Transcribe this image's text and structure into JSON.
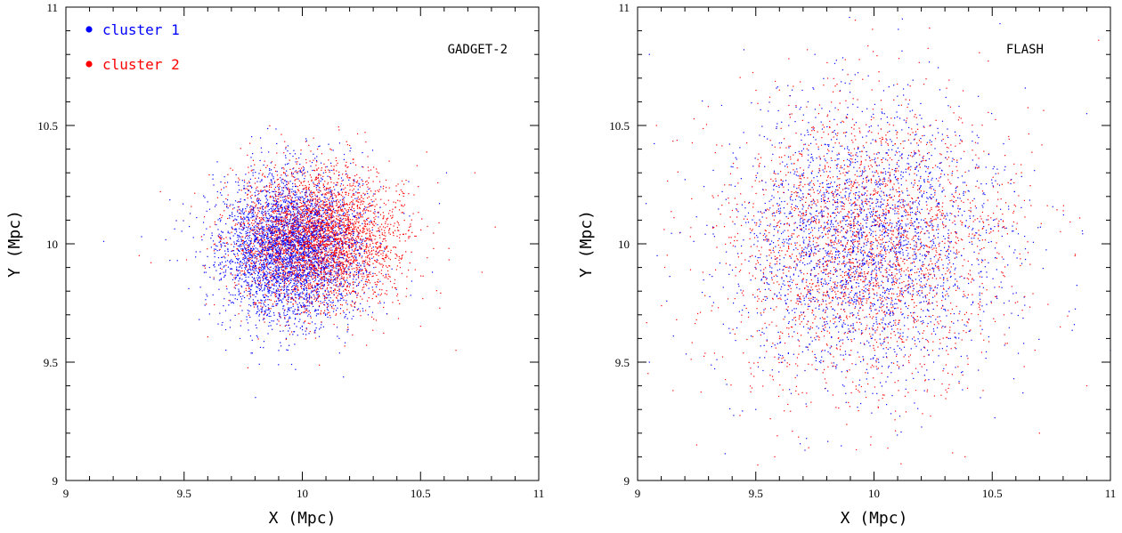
{
  "colors": {
    "cluster_1": "#0000ff",
    "cluster_2": "#ff0000",
    "axis": "#000000"
  },
  "chart_data": [
    {
      "type": "scatter",
      "panel_label": "GADGET-2",
      "xlabel": "X (Mpc)",
      "ylabel": "Y (Mpc)",
      "xlim": [
        9,
        11
      ],
      "ylim": [
        9,
        11
      ],
      "x_major_ticks": [
        9,
        9.5,
        10,
        10.5,
        11
      ],
      "y_major_ticks": [
        9,
        9.5,
        10,
        10.5,
        11
      ],
      "tick_labels": [
        "9",
        "9.5",
        "10",
        "10.5",
        "11"
      ],
      "legend_position": "top-left",
      "series": [
        {
          "name": "cluster 1",
          "color": "#0000ff",
          "center": [
            9.95,
            9.98
          ],
          "spread": [
            0.15,
            0.16
          ],
          "count": 3600,
          "outliers": [
            [
              9.16,
              10.01
            ],
            [
              9.32,
              10.03
            ],
            [
              9.44,
              9.93
            ],
            [
              10.61,
              10.3
            ],
            [
              10.58,
              10.17
            ],
            [
              10.55,
              9.88
            ]
          ]
        },
        {
          "name": "cluster 2",
          "color": "#ff0000",
          "center": [
            10.06,
            10.02
          ],
          "spread": [
            0.17,
            0.15
          ],
          "count": 3600,
          "outliers": [
            [
              9.31,
              9.95
            ],
            [
              9.36,
              9.92
            ],
            [
              9.4,
              10.22
            ],
            [
              10.73,
              10.3
            ],
            [
              10.65,
              9.55
            ],
            [
              10.62,
              9.98
            ],
            [
              10.76,
              9.88
            ]
          ]
        }
      ]
    },
    {
      "type": "scatter",
      "panel_label": "FLASH",
      "xlabel": "X (Mpc)",
      "ylabel": "Y (Mpc)",
      "xlim": [
        9,
        11
      ],
      "ylim": [
        9,
        11
      ],
      "x_major_ticks": [
        9,
        9.5,
        10,
        10.5,
        11
      ],
      "y_major_ticks": [
        9,
        9.5,
        10,
        10.5,
        11
      ],
      "tick_labels": [
        "9",
        "9.5",
        "10",
        "10.5",
        "11"
      ],
      "series": [
        {
          "name": "cluster 1",
          "color": "#0000ff",
          "center": [
            9.97,
            10.0
          ],
          "spread": [
            0.28,
            0.28
          ],
          "count": 2600,
          "outliers": [
            [
              9.05,
              10.8
            ],
            [
              9.45,
              10.82
            ],
            [
              10.12,
              10.95
            ],
            [
              9.75,
              10.8
            ],
            [
              10.9,
              10.55
            ],
            [
              9.5,
              9.3
            ],
            [
              10.45,
              9.35
            ],
            [
              11.0,
              9.55
            ],
            [
              9.05,
              9.5
            ]
          ]
        },
        {
          "name": "cluster 2",
          "color": "#ff0000",
          "center": [
            9.97,
            9.99
          ],
          "spread": [
            0.3,
            0.3
          ],
          "count": 2600,
          "outliers": [
            [
              10.95,
              10.86
            ],
            [
              9.58,
              9.1
            ],
            [
              9.25,
              9.15
            ],
            [
              9.15,
              9.38
            ],
            [
              10.7,
              9.2
            ],
            [
              10.9,
              9.4
            ],
            [
              9.08,
              10.5
            ],
            [
              10.55,
              9.7
            ]
          ]
        }
      ]
    }
  ]
}
